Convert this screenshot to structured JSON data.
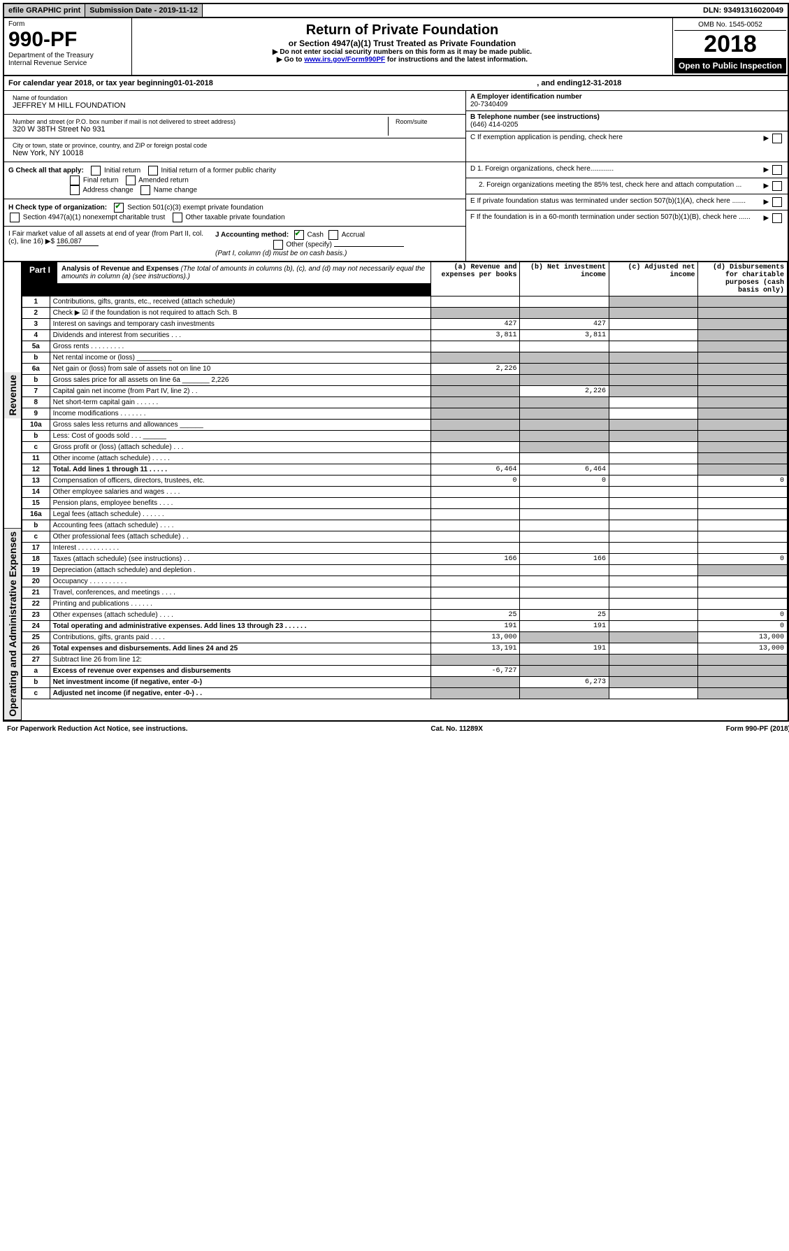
{
  "topbar": {
    "efile": "efile GRAPHIC print",
    "subdate": "Submission Date - 2019-11-12",
    "dln": "DLN: 93491316020049"
  },
  "header": {
    "form_word": "Form",
    "form_num": "990-PF",
    "dept": "Department of the Treasury",
    "irs": "Internal Revenue Service",
    "title_main": "Return of Private Foundation",
    "title_sub": "or Section 4947(a)(1) Trust Treated as Private Foundation",
    "bullet1": "▶ Do not enter social security numbers on this form as it may be made public.",
    "bullet2_pre": "▶ Go to ",
    "bullet2_link": "www.irs.gov/Form990PF",
    "bullet2_post": " for instructions and the latest information.",
    "omb": "OMB No. 1545-0052",
    "year": "2018",
    "open": "Open to Public Inspection"
  },
  "calyear": {
    "pre": "For calendar year 2018, or tax year beginning ",
    "begin": "01-01-2018",
    "mid": " , and ending ",
    "end": "12-31-2018"
  },
  "foundation": {
    "name_label": "Name of foundation",
    "name": "JEFFREY M HILL FOUNDATION",
    "addr_label": "Number and street (or P.O. box number if mail is not delivered to street address)",
    "addr": "320 W 38TH Street No 931",
    "room_label": "Room/suite",
    "city_label": "City or town, state or province, country, and ZIP or foreign postal code",
    "city": "New York, NY  10018"
  },
  "rightinfo": {
    "a_label": "A Employer identification number",
    "a_val": "20-7340409",
    "b_label": "B Telephone number (see instructions)",
    "b_val": "(646) 414-0205",
    "c_label": "C If exemption application is pending, check here",
    "d1": "D 1. Foreign organizations, check here............",
    "d2": "2. Foreign organizations meeting the 85% test, check here and attach computation ...",
    "e": "E  If private foundation status was terminated under section 507(b)(1)(A), check here .......",
    "f": "F  If the foundation is in a 60-month termination under section 507(b)(1)(B), check here ......"
  },
  "g": {
    "label": "G Check all that apply:",
    "opts": [
      "Initial return",
      "Initial return of a former public charity",
      "Final return",
      "Amended return",
      "Address change",
      "Name change"
    ]
  },
  "h": {
    "label": "H Check type of organization:",
    "opt1": "Section 501(c)(3) exempt private foundation",
    "opt2": "Section 4947(a)(1) nonexempt charitable trust",
    "opt3": "Other taxable private foundation"
  },
  "i": {
    "label": "I Fair market value of all assets at end of year (from Part II, col. (c), line 16) ▶$",
    "val": "186,087"
  },
  "j": {
    "label": "J Accounting method:",
    "cash": "Cash",
    "accrual": "Accrual",
    "other": "Other (specify)",
    "note": "(Part I, column (d) must be on cash basis.)"
  },
  "part1": {
    "label": "Part I",
    "title": "Analysis of Revenue and Expenses",
    "title_note": "(The total of amounts in columns (b), (c), and (d) may not necessarily equal the amounts in column (a) (see instructions).)",
    "col_a": "(a)    Revenue and expenses per books",
    "col_b": "(b)    Net investment income",
    "col_c": "(c)    Adjusted net income",
    "col_d": "(d)    Disbursements for charitable purposes (cash basis only)"
  },
  "sidelabels": {
    "revenue": "Revenue",
    "expenses": "Operating and Administrative Expenses"
  },
  "rows": [
    {
      "n": "1",
      "desc": "Contributions, gifts, grants, etc., received (attach schedule)",
      "a": "",
      "b": "",
      "c_shade": true,
      "d_shade": true
    },
    {
      "n": "2",
      "desc": "Check ▶ ☑ if the foundation is not required to attach Sch. B",
      "a": "",
      "b": "",
      "c_shade": true,
      "d_shade": true,
      "b_shade": true,
      "a_shade": true
    },
    {
      "n": "2x",
      "skip": true
    },
    {
      "n": "3",
      "desc": "Interest on savings and temporary cash investments",
      "a": "427",
      "b": "427",
      "d_shade": true
    },
    {
      "n": "4",
      "desc": "Dividends and interest from securities   .   .   .",
      "a": "3,811",
      "b": "3,811",
      "d_shade": true
    },
    {
      "n": "5a",
      "desc": "Gross rents   .   .   .   .   .   .   .   .   .",
      "d_shade": true
    },
    {
      "n": "b",
      "desc": "Net rental income or (loss)  _________",
      "a_shade": true,
      "b_shade": true,
      "c_shade": true,
      "d_shade": true
    },
    {
      "n": "6a",
      "desc": "Net gain or (loss) from sale of assets not on line 10",
      "a": "2,226",
      "b_shade": true,
      "c_shade": true,
      "d_shade": true
    },
    {
      "n": "b",
      "desc": "Gross sales price for all assets on line 6a _______ 2,226",
      "a_shade": true,
      "b_shade": true,
      "c_shade": true,
      "d_shade": true
    },
    {
      "n": "7",
      "desc": "Capital gain net income (from Part IV, line 2)   .   .",
      "a_shade": true,
      "b": "2,226",
      "c_shade": true,
      "d_shade": true
    },
    {
      "n": "8",
      "desc": "Net short-term capital gain   .   .   .   .   .   .",
      "a_shade": true,
      "b_shade": true,
      "d_shade": true
    },
    {
      "n": "9",
      "desc": "Income modifications   .   .   .   .   .   .   .",
      "a_shade": true,
      "b_shade": true,
      "d_shade": true
    },
    {
      "n": "10a",
      "desc": "Gross sales less returns and allowances  ______",
      "a_shade": true,
      "b_shade": true,
      "c_shade": true,
      "d_shade": true
    },
    {
      "n": "b",
      "desc": "Less: Cost of goods sold   .   .   .  ______",
      "a_shade": true,
      "b_shade": true,
      "c_shade": true,
      "d_shade": true
    },
    {
      "n": "c",
      "desc": "Gross profit or (loss) (attach schedule)   .   .   .",
      "a_shade": false,
      "b_shade": true,
      "d_shade": true
    },
    {
      "n": "11",
      "desc": "Other income (attach schedule)   .   .   .   .   .",
      "d_shade": true
    },
    {
      "n": "12",
      "desc": "Total. Add lines 1 through 11   .   .   .   .   .",
      "bold": true,
      "a": "6,464",
      "b": "6,464",
      "d_shade": true
    },
    {
      "n": "13",
      "desc": "Compensation of officers, directors, trustees, etc.",
      "a": "0",
      "b": "0",
      "d": "0",
      "section": "exp"
    },
    {
      "n": "14",
      "desc": "Other employee salaries and wages   .   .   .   .",
      "section": "exp"
    },
    {
      "n": "15",
      "desc": "Pension plans, employee benefits   .   .   .   .",
      "section": "exp"
    },
    {
      "n": "16a",
      "desc": "Legal fees (attach schedule)   .   .   .   .   .   .",
      "section": "exp"
    },
    {
      "n": "b",
      "desc": "Accounting fees (attach schedule)   .   .   .   .",
      "section": "exp"
    },
    {
      "n": "c",
      "desc": "Other professional fees (attach schedule)   .   .",
      "section": "exp"
    },
    {
      "n": "17",
      "desc": "Interest   .   .   .   .   .   .   .   .   .   .   .",
      "section": "exp"
    },
    {
      "n": "18",
      "desc": "Taxes (attach schedule) (see instructions)   .   .",
      "a": "166",
      "b": "166",
      "d": "0",
      "section": "exp"
    },
    {
      "n": "19",
      "desc": "Depreciation (attach schedule) and depletion   .",
      "d_shade": true,
      "section": "exp"
    },
    {
      "n": "20",
      "desc": "Occupancy   .   .   .   .   .   .   .   .   .   .",
      "section": "exp"
    },
    {
      "n": "21",
      "desc": "Travel, conferences, and meetings   .   .   .   .",
      "section": "exp"
    },
    {
      "n": "22",
      "desc": "Printing and publications   .   .   .   .   .   .",
      "section": "exp"
    },
    {
      "n": "23",
      "desc": "Other expenses (attach schedule)   .   .   .   .",
      "a": "25",
      "b": "25",
      "d": "0",
      "section": "exp"
    },
    {
      "n": "24",
      "desc": "Total operating and administrative expenses. Add lines 13 through 23   .   .   .   .   .   .",
      "bold": true,
      "a": "191",
      "b": "191",
      "d": "0",
      "section": "exp"
    },
    {
      "n": "25",
      "desc": "Contributions, gifts, grants paid   .   .   .   .",
      "a": "13,000",
      "b_shade": true,
      "c_shade": true,
      "d": "13,000",
      "section": "exp"
    },
    {
      "n": "26",
      "desc": "Total expenses and disbursements. Add lines 24 and 25",
      "bold": true,
      "a": "13,191",
      "b": "191",
      "d": "13,000",
      "section": "exp"
    },
    {
      "n": "27",
      "desc": "Subtract line 26 from line 12:",
      "a_shade": true,
      "b_shade": true,
      "c_shade": true,
      "d_shade": true,
      "section": "exp"
    },
    {
      "n": "a",
      "desc": "Excess of revenue over expenses and disbursements",
      "bold": true,
      "a": "-6,727",
      "b_shade": true,
      "c_shade": true,
      "d_shade": true,
      "section": "exp"
    },
    {
      "n": "b",
      "desc": "Net investment income (if negative, enter -0-)",
      "bold": true,
      "a_shade": true,
      "b": "6,273",
      "c_shade": true,
      "d_shade": true,
      "section": "exp"
    },
    {
      "n": "c",
      "desc": "Adjusted net income (if negative, enter -0-)   .   .",
      "bold": true,
      "a_shade": true,
      "b_shade": true,
      "d_shade": true,
      "section": "exp"
    }
  ],
  "footer": {
    "left": "For Paperwork Reduction Act Notice, see instructions.",
    "mid": "Cat. No. 11289X",
    "right": "Form 990-PF (2018)"
  }
}
